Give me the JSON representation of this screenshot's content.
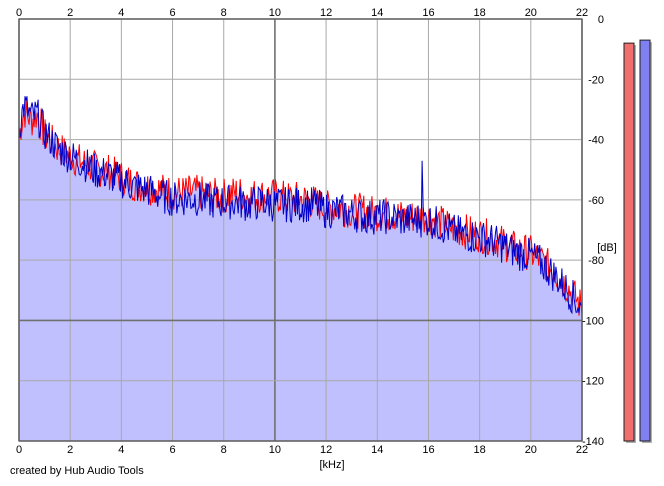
{
  "credit": "created by Hub Audio Tools",
  "chart_data": {
    "type": "line",
    "xlabel": "[kHz]",
    "ylabel": "[dB]",
    "xlim": [
      0,
      22
    ],
    "ylim": [
      -140,
      0
    ],
    "x_ticks": [
      0,
      2,
      4,
      6,
      8,
      10,
      12,
      14,
      16,
      18,
      20,
      22
    ],
    "y_ticks": [
      0,
      -20,
      -40,
      -60,
      -80,
      -100,
      -120,
      -140
    ],
    "grid": true,
    "fill_color": "#c0c0ff",
    "series": [
      {
        "color": "#ff0000",
        "x": [
          0,
          0.2,
          0.5,
          0.7,
          1,
          1.5,
          2,
          2.5,
          3,
          3.5,
          4,
          4.5,
          5,
          5.5,
          6,
          6.5,
          7,
          7.5,
          8,
          8.5,
          9,
          9.5,
          10,
          10.5,
          11,
          11.5,
          12,
          12.5,
          13,
          13.5,
          14,
          14.5,
          15,
          15.5,
          16,
          16.5,
          17,
          17.5,
          18,
          18.5,
          19,
          19.5,
          20,
          20.5,
          21,
          21.5,
          22
        ],
        "y": [
          -38,
          -30,
          -33,
          -31,
          -38,
          -42,
          -45,
          -47,
          -49,
          -50,
          -52,
          -54,
          -55,
          -56,
          -57,
          -57,
          -57,
          -58,
          -58,
          -57,
          -58,
          -58,
          -58,
          -59,
          -59,
          -60,
          -62,
          -62,
          -63,
          -63,
          -64,
          -64,
          -65,
          -65,
          -65,
          -67,
          -69,
          -70,
          -71,
          -72,
          -74,
          -76,
          -77,
          -80,
          -84,
          -89,
          -95
        ]
      },
      {
        "color": "#0000c8",
        "x": [
          0,
          0.2,
          0.5,
          0.7,
          1,
          1.5,
          2,
          2.5,
          3,
          3.5,
          4,
          4.5,
          5,
          5.5,
          6,
          6.5,
          7,
          7.5,
          8,
          8.5,
          9,
          9.5,
          10,
          10.5,
          11,
          11.5,
          12,
          12.5,
          13,
          13.5,
          14,
          14.5,
          15,
          15.5,
          16,
          16.5,
          17,
          17.5,
          18,
          18.5,
          19,
          19.5,
          20,
          20.5,
          21,
          21.5,
          22
        ],
        "y": [
          -35,
          -28,
          -32,
          -31,
          -37,
          -42,
          -45,
          -47,
          -50,
          -51,
          -53,
          -55,
          -56,
          -58,
          -59,
          -59,
          -59,
          -60,
          -60,
          -60,
          -61,
          -60,
          -61,
          -61,
          -61,
          -61,
          -63,
          -63,
          -64,
          -65,
          -65,
          -65,
          -66,
          -66,
          -66,
          -68,
          -70,
          -71,
          -72,
          -73,
          -75,
          -77,
          -78,
          -81,
          -85,
          -90,
          -96
        ]
      }
    ],
    "annotations": [
      {
        "type": "spike",
        "series": 1,
        "x": 15.75,
        "y": -47
      }
    ],
    "level_meters": [
      {
        "color": "#f07070",
        "level": -8
      },
      {
        "color": "#8080f0",
        "level": -7
      }
    ]
  }
}
